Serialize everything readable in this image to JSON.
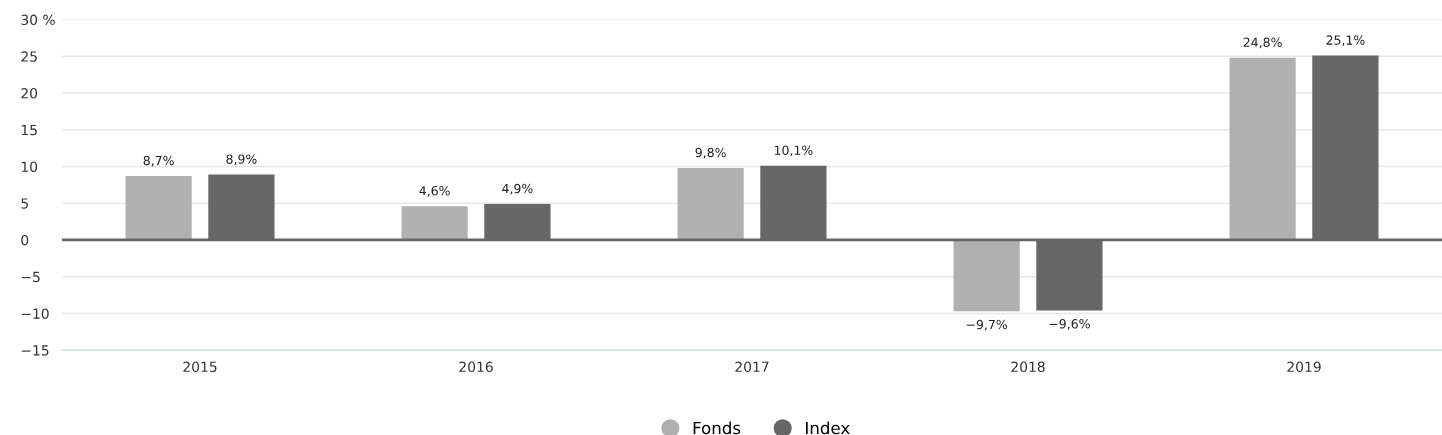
{
  "chart_data": {
    "type": "bar",
    "categories": [
      "2015",
      "2016",
      "2017",
      "2018",
      "2019"
    ],
    "series": [
      {
        "name": "Fonds",
        "color": "#b0b0b0",
        "values": [
          8.7,
          4.6,
          9.8,
          -9.7,
          24.8
        ],
        "value_labels": [
          "8,7%",
          "4,6%",
          "9,8%",
          "−9,7%",
          "24,8%"
        ]
      },
      {
        "name": "Index",
        "color": "#676767",
        "values": [
          8.9,
          4.9,
          10.1,
          -9.6,
          25.1
        ],
        "value_labels": [
          "8,9%",
          "4,9%",
          "10,1%",
          "−9,6%",
          "25,1%"
        ]
      }
    ],
    "ylim": [
      -15,
      30
    ],
    "yticks": [
      {
        "value": -15,
        "label": "−15"
      },
      {
        "value": -10,
        "label": "−10"
      },
      {
        "value": -5,
        "label": "−5"
      },
      0,
      5,
      10,
      15,
      20,
      25,
      {
        "value": 30,
        "label": "30 %"
      }
    ],
    "ref_lines": [
      {
        "axis": "y",
        "value": 0,
        "color": "#666666"
      }
    ],
    "grid": "y",
    "legend": "bottom"
  }
}
